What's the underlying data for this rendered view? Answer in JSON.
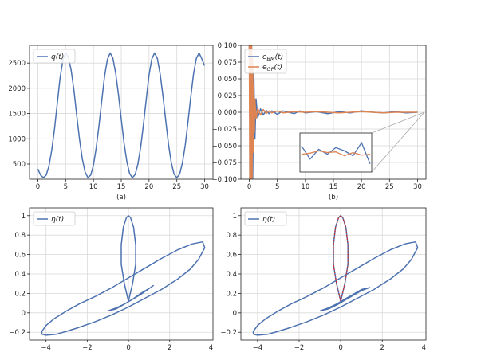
{
  "chart_data": [
    {
      "type": "line",
      "caption": "(a)",
      "xlim": [
        -1.5,
        31.5
      ],
      "ylim": [
        200,
        2850
      ],
      "xticks": [
        0,
        5,
        10,
        15,
        20,
        25,
        30
      ],
      "yticks": [
        500,
        1000,
        1500,
        2000,
        2500
      ],
      "grid": true,
      "legend_position": "top-left",
      "series": [
        {
          "name": "q(t)",
          "color": "#4c72b0",
          "x": [
            0,
            0.5,
            1,
            1.5,
            2,
            2.5,
            3,
            3.5,
            4,
            4.5,
            5,
            5.5,
            6,
            6.5,
            7,
            7.5,
            8,
            8.5,
            9,
            9.5,
            10,
            10.5,
            11,
            11.5,
            12,
            12.5,
            13,
            13.5,
            14,
            14.5,
            15,
            15.5,
            16,
            16.5,
            17,
            17.5,
            18,
            18.5,
            19,
            19.5,
            20,
            20.5,
            21,
            21.5,
            22,
            22.5,
            23,
            23.5,
            24,
            24.5,
            25,
            25.5,
            26,
            26.5,
            27,
            27.5,
            28,
            28.5,
            29,
            29.5,
            30
          ],
          "y": [
            400,
            280,
            230,
            280,
            460,
            780,
            1200,
            1700,
            2200,
            2560,
            2700,
            2620,
            2350,
            1950,
            1460,
            990,
            600,
            340,
            230,
            280,
            480,
            820,
            1260,
            1760,
            2240,
            2570,
            2700,
            2600,
            2300,
            1880,
            1390,
            920,
            550,
            310,
            230,
            290,
            500,
            840,
            1290,
            1790,
            2260,
            2580,
            2700,
            2590,
            2280,
            1850,
            1360,
            900,
            530,
            300,
            230,
            300,
            520,
            870,
            1320,
            1820,
            2280,
            2590,
            2700,
            2580,
            2450
          ]
        }
      ]
    },
    {
      "type": "line",
      "caption": "(b)",
      "xlim": [
        -1.5,
        31.5
      ],
      "ylim": [
        -0.1,
        0.1
      ],
      "xticks": [
        0,
        5,
        10,
        15,
        20,
        25,
        30
      ],
      "yticks": [
        -0.1,
        -0.075,
        -0.05,
        -0.025,
        0.0,
        0.025,
        0.05,
        0.075,
        0.1
      ],
      "ytick_labels": [
        "-0.100",
        "-0.075",
        "-0.050",
        "-0.025",
        "0.000",
        "0.025",
        "0.050",
        "0.075",
        "0.100"
      ],
      "grid": true,
      "legend_position": "top-left",
      "series": [
        {
          "name": "e_BM(t)",
          "name_main": "e",
          "name_sub": "BM",
          "name_suffix": "(t)",
          "color": "#4c72b0",
          "x": [
            0,
            0.2,
            0.4,
            0.6,
            0.8,
            1.0,
            1.2,
            1.5,
            2,
            2.5,
            3,
            3.5,
            4,
            5,
            6,
            7,
            8,
            9,
            10,
            12,
            14,
            16,
            18,
            20,
            22,
            24,
            26,
            28,
            30
          ],
          "y": [
            0.1,
            -0.1,
            0.1,
            -0.1,
            0.06,
            -0.04,
            0.02,
            -0.008,
            0.005,
            -0.004,
            0.003,
            -0.002,
            0.002,
            -0.003,
            0.002,
            0.0,
            -0.002,
            0.002,
            -0.001,
            0.001,
            -0.002,
            0.001,
            -0.001,
            0.002,
            0.0,
            -0.001,
            0.001,
            -0.001,
            0.0
          ]
        },
        {
          "name": "e_GP(t)",
          "name_main": "e",
          "name_sub": "GP",
          "name_suffix": "(t)",
          "color": "#dd8452",
          "x": [
            0,
            0.1,
            0.2,
            0.3,
            0.4,
            0.5,
            0.6,
            0.7,
            0.8,
            0.9,
            1.0,
            1.2,
            1.5,
            2,
            2.5,
            3,
            3.5,
            4,
            5,
            6,
            8,
            10,
            12,
            14,
            16,
            18,
            20,
            22,
            24,
            26,
            28,
            30
          ],
          "y": [
            0.1,
            -0.1,
            0.1,
            -0.1,
            0.1,
            -0.1,
            0.08,
            -0.06,
            0.04,
            -0.03,
            0.02,
            -0.01,
            0.006,
            -0.004,
            0.004,
            -0.002,
            0.002,
            -0.001,
            0.002,
            -0.001,
            0.001,
            0.0,
            0.001,
            0.0,
            -0.001,
            0.0,
            0.001,
            0.0,
            -0.001,
            0.0,
            0.0,
            0.0
          ]
        }
      ],
      "inset": {
        "blue_y": [
          0.3,
          0.7,
          0.4,
          0.55,
          0.35,
          0.45,
          0.6,
          0.2,
          0.85
        ],
        "orange_y": [
          0.55,
          0.52,
          0.45,
          0.5,
          0.48,
          0.6,
          0.5,
          0.58,
          0.55
        ]
      }
    },
    {
      "type": "line",
      "xlim": [
        -4.8,
        4.1
      ],
      "ylim": [
        -0.28,
        1.08
      ],
      "xticks": [
        -4,
        -2,
        0,
        2,
        4
      ],
      "yticks": [
        -0.2,
        0.0,
        0.2,
        0.4,
        0.6,
        0.8,
        1.0
      ],
      "grid": true,
      "legend_position": "top-left",
      "series": [
        {
          "name": "η(t)",
          "color": "#4c72b0",
          "x": [
            -4.2,
            -4.0,
            -3.5,
            -3.0,
            -2.4,
            -1.6,
            -0.8,
            0.0,
            0.8,
            1.6,
            2.4,
            3.0,
            3.4,
            3.7,
            3.6,
            3.1,
            2.4,
            1.6,
            0.8,
            0.0,
            -0.8,
            -1.6,
            -2.4,
            -3.0,
            -3.6,
            -4.0,
            -4.2,
            -4.2
          ],
          "y": [
            -0.22,
            -0.23,
            -0.22,
            -0.19,
            -0.15,
            -0.09,
            -0.02,
            0.06,
            0.15,
            0.24,
            0.35,
            0.45,
            0.55,
            0.67,
            0.73,
            0.71,
            0.65,
            0.56,
            0.46,
            0.36,
            0.26,
            0.17,
            0.09,
            0.02,
            -0.06,
            -0.13,
            -0.19,
            -0.22
          ]
        },
        {
          "name": "",
          "color": "#4c72b0",
          "x": [
            0.0,
            -0.2,
            -0.35,
            -0.35,
            -0.25,
            -0.1,
            0.0,
            0.1,
            0.25,
            0.35,
            0.35,
            0.2,
            0.0
          ],
          "y": [
            0.12,
            0.3,
            0.5,
            0.7,
            0.88,
            0.98,
            1.0,
            0.98,
            0.88,
            0.7,
            0.5,
            0.3,
            0.12
          ]
        },
        {
          "name": "",
          "color": "#4c72b0",
          "x": [
            -1.0,
            -0.6,
            -0.2,
            0.2,
            0.6,
            1.0,
            1.2,
            1.0,
            0.6,
            0.2,
            -0.2,
            -0.6,
            -1.0
          ],
          "y": [
            0.02,
            0.05,
            0.09,
            0.14,
            0.19,
            0.25,
            0.28,
            0.25,
            0.2,
            0.14,
            0.09,
            0.04,
            0.02
          ]
        }
      ]
    },
    {
      "type": "line",
      "xlim": [
        -4.8,
        4.1
      ],
      "ylim": [
        -0.28,
        1.08
      ],
      "xticks": [
        -4,
        -2,
        0,
        2,
        4
      ],
      "yticks": [
        -0.2,
        0.0,
        0.2,
        0.4,
        0.6,
        0.8,
        1.0
      ],
      "grid": true,
      "legend_position": "top-left",
      "series": [
        {
          "name": "η(t)",
          "color": "#4c72b0",
          "x": [
            -4.2,
            -4.0,
            -3.5,
            -3.0,
            -2.4,
            -1.6,
            -0.8,
            0.0,
            0.8,
            1.6,
            2.4,
            3.0,
            3.4,
            3.7,
            3.6,
            3.1,
            2.4,
            1.6,
            0.8,
            0.0,
            -0.8,
            -1.6,
            -2.4,
            -3.0,
            -3.6,
            -4.0,
            -4.2,
            -4.2
          ],
          "y": [
            -0.22,
            -0.23,
            -0.22,
            -0.19,
            -0.15,
            -0.09,
            -0.02,
            0.06,
            0.15,
            0.24,
            0.35,
            0.45,
            0.55,
            0.67,
            0.73,
            0.71,
            0.65,
            0.56,
            0.46,
            0.36,
            0.26,
            0.17,
            0.09,
            0.02,
            -0.06,
            -0.13,
            -0.19,
            -0.22
          ]
        },
        {
          "name": "",
          "color": "#4c72b0",
          "x": [
            0.0,
            -0.2,
            -0.35,
            -0.35,
            -0.25,
            -0.1,
            0.0,
            0.1,
            0.25,
            0.35,
            0.35,
            0.2,
            0.0
          ],
          "y": [
            0.12,
            0.3,
            0.5,
            0.7,
            0.88,
            0.98,
            1.0,
            0.98,
            0.88,
            0.7,
            0.5,
            0.3,
            0.12
          ]
        },
        {
          "name": "",
          "color": "#4c72b0",
          "x": [
            -1.0,
            -0.6,
            -0.2,
            0.2,
            0.6,
            1.0,
            1.4,
            1.0,
            0.6,
            0.2,
            -0.2,
            -0.6,
            -1.0
          ],
          "y": [
            0.02,
            0.05,
            0.09,
            0.14,
            0.19,
            0.24,
            0.26,
            0.23,
            0.18,
            0.13,
            0.08,
            0.04,
            0.02
          ]
        },
        {
          "name": "",
          "style": "dashed",
          "color": "#d62728",
          "x": [
            0.0,
            -0.2,
            -0.35,
            -0.35,
            -0.25,
            -0.1,
            0.0,
            0.1,
            0.25,
            0.35,
            0.35,
            0.2,
            0.0
          ],
          "y": [
            0.12,
            0.3,
            0.5,
            0.7,
            0.88,
            0.98,
            1.0,
            0.98,
            0.88,
            0.7,
            0.5,
            0.3,
            0.12
          ]
        }
      ]
    }
  ]
}
